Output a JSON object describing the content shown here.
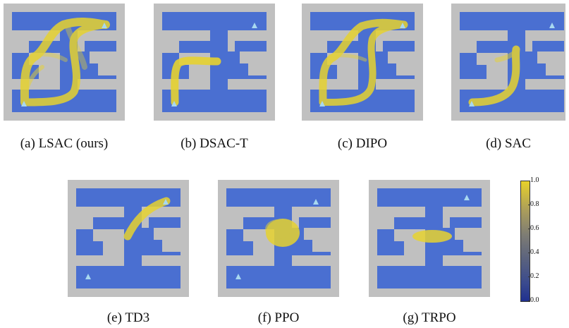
{
  "figure": {
    "panels": [
      {
        "id": "a",
        "caption": "(a) LSAC (ours)",
        "method": "LSAC",
        "trajectory_spread": "wide"
      },
      {
        "id": "b",
        "caption": "(b) DSAC-T",
        "method": "DSAC-T",
        "trajectory_spread": "narrow"
      },
      {
        "id": "c",
        "caption": "(c) DIPO",
        "method": "DIPO",
        "trajectory_spread": "wide"
      },
      {
        "id": "d",
        "caption": "(d) SAC",
        "method": "SAC",
        "trajectory_spread": "narrow"
      },
      {
        "id": "e",
        "caption": "(e) TD3",
        "method": "TD3",
        "trajectory_spread": "narrow"
      },
      {
        "id": "f",
        "caption": "(f) PPO",
        "method": "PPO",
        "trajectory_spread": "blob"
      },
      {
        "id": "g",
        "caption": "(g) TRPO",
        "method": "TRPO",
        "trajectory_spread": "blob"
      }
    ],
    "colorbar": {
      "min": 0.0,
      "max": 1.0,
      "ticks": [
        "0.0",
        "0.2",
        "0.4",
        "0.6",
        "0.8",
        "1.0"
      ]
    },
    "colors": {
      "wall": "#c0c0c0",
      "floor": "#4a6fd1",
      "trajectory": "#e6d230",
      "goal_marker": "#a8d8f0"
    }
  }
}
